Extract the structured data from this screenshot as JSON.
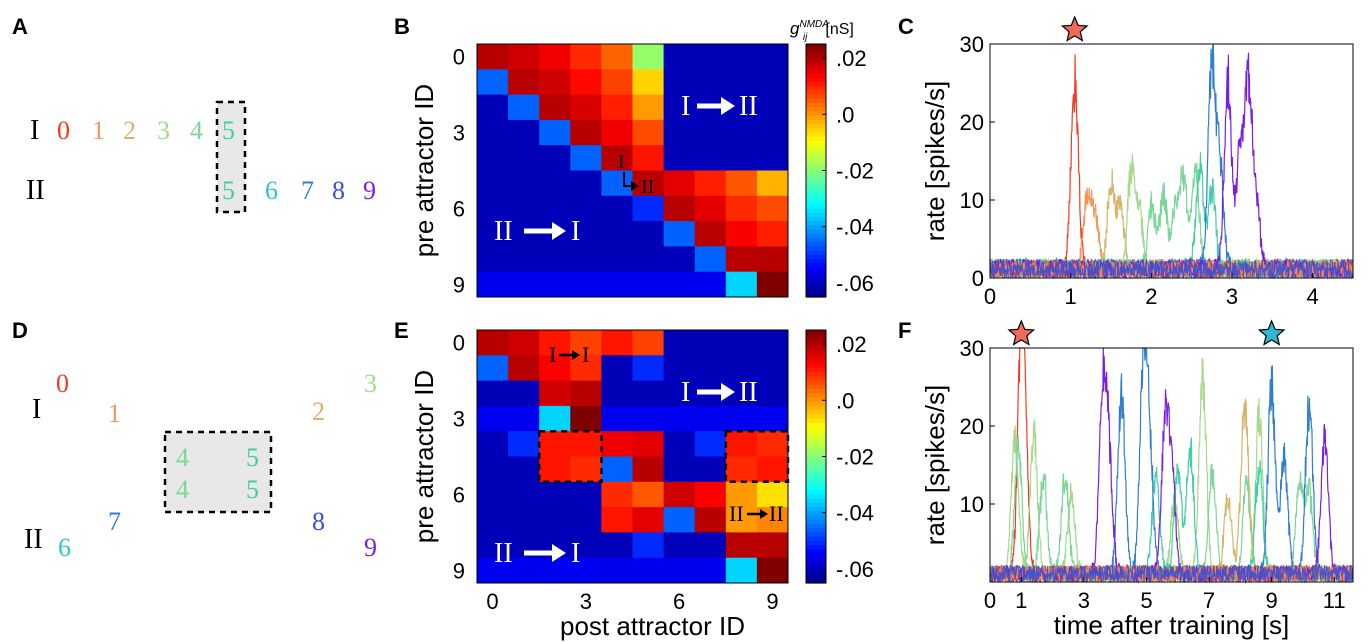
{
  "panel_labels": [
    "A",
    "B",
    "C",
    "D",
    "E",
    "F"
  ],
  "colors": {
    "attractor": [
      "#ef3b24",
      "#f2965a",
      "#d5b56a",
      "#a6d98a",
      "#7bd69a",
      "#3fcfa4",
      "#2ec3d2",
      "#2f7fcf",
      "#3a4dd6",
      "#7a1fe0"
    ],
    "box_fill": "#e8e8e8",
    "colormap_stops": [
      "#00007f",
      "#0000ff",
      "#007fff",
      "#00ffff",
      "#7fff7f",
      "#ffff00",
      "#ff7f00",
      "#ff0000",
      "#7f0000"
    ]
  },
  "schematic_A": {
    "row_I_label": "I",
    "row_II_label": "II",
    "row_I_digits": [
      "0",
      "1",
      "2",
      "3",
      "4",
      "5"
    ],
    "row_II_digits": [
      "5",
      "6",
      "7",
      "8",
      "9"
    ]
  },
  "schematic_D": {
    "row_I_label": "I",
    "row_II_label": "II",
    "digits_I": [
      "0",
      "1",
      "2",
      "3"
    ],
    "digits_II": [
      "6",
      "7",
      "8",
      "9"
    ],
    "box_digits": [
      "4",
      "5",
      "4",
      "5"
    ]
  },
  "chart_data": [
    {
      "panel": "B",
      "type": "heatmap",
      "ylabel": "pre attractor ID",
      "xlabel": "",
      "x_ticks": [],
      "y_ticks": [
        "0",
        "3",
        "6",
        "9"
      ],
      "colorbar_label": "g",
      "colorbar_label_sub": "ij",
      "colorbar_label_sup": "NMDA",
      "colorbar_label_unit": "[nS]",
      "colorbar_ticks": [
        ".02",
        ".0",
        "-.02",
        "-.04",
        "-.06"
      ],
      "colorbar_tick_values": [
        0.02,
        0.0,
        -0.02,
        -0.04,
        -0.06
      ],
      "clim": [
        -0.065,
        0.025
      ],
      "annotations": [
        "I",
        "II",
        "I",
        "II",
        "II",
        "I"
      ],
      "matrix": [
        [
          0.02,
          0.018,
          0.015,
          0.01,
          0.005,
          -0.018,
          -0.06,
          -0.06,
          -0.06,
          -0.06
        ],
        [
          -0.045,
          0.02,
          0.018,
          0.013,
          0.008,
          -0.005,
          -0.06,
          -0.06,
          -0.06,
          -0.06
        ],
        [
          -0.06,
          -0.045,
          0.02,
          0.017,
          0.011,
          0.0,
          -0.06,
          -0.06,
          -0.06,
          -0.06
        ],
        [
          -0.06,
          -0.06,
          -0.045,
          0.02,
          0.015,
          0.007,
          -0.06,
          -0.06,
          -0.06,
          -0.06
        ],
        [
          -0.06,
          -0.06,
          -0.06,
          -0.045,
          0.02,
          0.012,
          -0.06,
          -0.06,
          -0.06,
          -0.06
        ],
        [
          -0.06,
          -0.06,
          -0.06,
          -0.06,
          -0.045,
          0.02,
          0.016,
          0.011,
          0.006,
          -0.002
        ],
        [
          -0.06,
          -0.06,
          -0.06,
          -0.06,
          -0.06,
          -0.05,
          0.02,
          0.016,
          0.01,
          0.007
        ],
        [
          -0.06,
          -0.06,
          -0.06,
          -0.06,
          -0.06,
          -0.06,
          -0.045,
          0.02,
          0.014,
          0.011
        ],
        [
          -0.06,
          -0.06,
          -0.06,
          -0.06,
          -0.06,
          -0.06,
          -0.06,
          -0.045,
          0.02,
          0.02
        ],
        [
          -0.055,
          -0.055,
          -0.055,
          -0.055,
          -0.055,
          -0.055,
          -0.055,
          -0.055,
          -0.035,
          0.025
        ]
      ]
    },
    {
      "panel": "C",
      "type": "line",
      "ylabel": "rate [spikes/s]",
      "xlabel": "",
      "x_ticks": [
        "0",
        "1",
        "2",
        "3",
        "4"
      ],
      "x_tick_values": [
        0,
        1,
        2,
        3,
        4
      ],
      "y_ticks": [
        "0",
        "10",
        "20",
        "30"
      ],
      "y_tick_values": [
        0,
        10,
        20,
        30
      ],
      "xlim": [
        0,
        4.5
      ],
      "ylim": [
        0,
        30
      ],
      "star_markers": [
        {
          "x": 1.05,
          "color": "#ef6a5a"
        }
      ],
      "series": [
        {
          "color_index": 0,
          "peaks": [
            [
              1.05,
              27
            ]
          ]
        },
        {
          "color_index": 1,
          "peaks": [
            [
              1.2,
              10
            ],
            [
              1.3,
              8
            ]
          ]
        },
        {
          "color_index": 2,
          "peaks": [
            [
              1.5,
              12.5
            ],
            [
              1.62,
              9
            ]
          ]
        },
        {
          "color_index": 3,
          "peaks": [
            [
              1.75,
              14
            ],
            [
              1.85,
              8
            ]
          ]
        },
        {
          "color_index": 4,
          "peaks": [
            [
              2.0,
              10
            ],
            [
              2.15,
              11
            ],
            [
              2.3,
              9
            ],
            [
              2.4,
              13
            ],
            [
              2.55,
              14
            ]
          ]
        },
        {
          "color_index": 5,
          "peaks": [
            [
              2.6,
              15
            ],
            [
              2.75,
              12
            ]
          ]
        },
        {
          "color_index": 7,
          "peaks": [
            [
              2.75,
              29
            ],
            [
              2.85,
              15
            ]
          ]
        },
        {
          "color_index": 9,
          "peaks": [
            [
              2.95,
              27
            ],
            [
              3.1,
              16
            ],
            [
              3.2,
              26
            ],
            [
              3.3,
              10
            ]
          ]
        }
      ],
      "baseline_noise": [
        0,
        3.5
      ]
    },
    {
      "panel": "E",
      "type": "heatmap",
      "ylabel": "pre attractor ID",
      "xlabel": "post attractor ID",
      "x_ticks": [
        "0",
        "3",
        "6",
        "9"
      ],
      "y_ticks": [
        "0",
        "3",
        "6",
        "9"
      ],
      "colorbar_ticks": [
        ".02",
        ".0",
        "-.02",
        "-.04",
        "-.06"
      ],
      "colorbar_tick_values": [
        0.02,
        0.0,
        -0.02,
        -0.04,
        -0.06
      ],
      "clim": [
        -0.065,
        0.025
      ],
      "annotations": [
        "I",
        "I",
        "I",
        "II",
        "II",
        "I",
        "II",
        "II"
      ],
      "matrix": [
        [
          0.02,
          0.018,
          0.012,
          0.008,
          0.012,
          0.008,
          -0.06,
          -0.06,
          -0.06,
          -0.06
        ],
        [
          -0.045,
          0.02,
          0.014,
          0.01,
          -0.06,
          -0.05,
          -0.06,
          -0.06,
          -0.06,
          -0.06
        ],
        [
          -0.06,
          -0.06,
          0.018,
          0.02,
          -0.06,
          -0.06,
          -0.06,
          -0.06,
          -0.06,
          -0.06
        ],
        [
          -0.055,
          -0.055,
          -0.035,
          0.025,
          -0.055,
          -0.055,
          -0.055,
          -0.055,
          -0.055,
          -0.055
        ],
        [
          -0.06,
          -0.05,
          0.012,
          0.012,
          0.015,
          0.016,
          -0.06,
          -0.05,
          0.012,
          0.01
        ],
        [
          -0.06,
          -0.06,
          0.012,
          0.01,
          -0.045,
          0.02,
          -0.06,
          -0.06,
          0.01,
          0.012
        ],
        [
          -0.06,
          -0.06,
          -0.06,
          -0.06,
          0.01,
          0.006,
          0.018,
          0.014,
          0.0,
          -0.006
        ],
        [
          -0.06,
          -0.06,
          -0.06,
          -0.06,
          0.012,
          0.016,
          -0.045,
          0.02,
          0.0,
          0.002
        ],
        [
          -0.06,
          -0.06,
          -0.06,
          -0.06,
          -0.06,
          -0.05,
          -0.06,
          -0.06,
          0.02,
          0.02
        ],
        [
          -0.055,
          -0.055,
          -0.055,
          -0.055,
          -0.055,
          -0.055,
          -0.055,
          -0.055,
          -0.035,
          0.025
        ]
      ]
    },
    {
      "panel": "F",
      "type": "line",
      "ylabel": "rate [spikes/s]",
      "xlabel": "time after training [s]",
      "x_ticks": [
        "0",
        "1",
        "3",
        "5",
        "7",
        "9",
        "11"
      ],
      "x_tick_values": [
        0,
        1,
        3,
        5,
        7,
        9,
        11
      ],
      "y_ticks": [
        "10",
        "20",
        "30"
      ],
      "y_tick_values": [
        10,
        20,
        30
      ],
      "xlim": [
        0,
        11.6
      ],
      "ylim": [
        0,
        30
      ],
      "star_markers": [
        {
          "x": 1.0,
          "color": "#ef6a5a"
        },
        {
          "x": 9.0,
          "color": "#2fb7d6"
        }
      ],
      "series": [
        {
          "color_index": 0,
          "peaks": [
            [
              1.0,
              28
            ],
            [
              1.1,
              16
            ]
          ]
        },
        {
          "color_index": 3,
          "peaks": [
            [
              0.8,
              20
            ],
            [
              1.4,
              20
            ],
            [
              2.6,
              11
            ],
            [
              5.9,
              11
            ],
            [
              6.8,
              28
            ],
            [
              8.6,
              23
            ]
          ]
        },
        {
          "color_index": 4,
          "peaks": [
            [
              0.9,
              18
            ],
            [
              1.7,
              14
            ],
            [
              2.4,
              14
            ],
            [
              7.1,
              15
            ],
            [
              8.2,
              13
            ],
            [
              9.9,
              14
            ],
            [
              10.2,
              12
            ]
          ]
        },
        {
          "color_index": 2,
          "peaks": [
            [
              7.6,
              11
            ],
            [
              8.1,
              14
            ],
            [
              8.2,
              12
            ]
          ]
        },
        {
          "color_index": 5,
          "peaks": [
            [
              5.3,
              15
            ],
            [
              6.0,
              15
            ],
            [
              6.4,
              18
            ],
            [
              8.6,
              16
            ]
          ]
        },
        {
          "color_index": 7,
          "peaks": [
            [
              4.2,
              26
            ],
            [
              4.9,
              30
            ],
            [
              5.1,
              17
            ],
            [
              9.0,
              27
            ],
            [
              9.4,
              17
            ],
            [
              10.2,
              25
            ]
          ]
        },
        {
          "color_index": 9,
          "peaks": [
            [
              3.6,
              25
            ],
            [
              3.8,
              16
            ],
            [
              5.6,
              21
            ],
            [
              5.8,
              14
            ],
            [
              10.7,
              20
            ]
          ]
        }
      ],
      "baseline_noise": [
        0,
        3
      ]
    }
  ]
}
